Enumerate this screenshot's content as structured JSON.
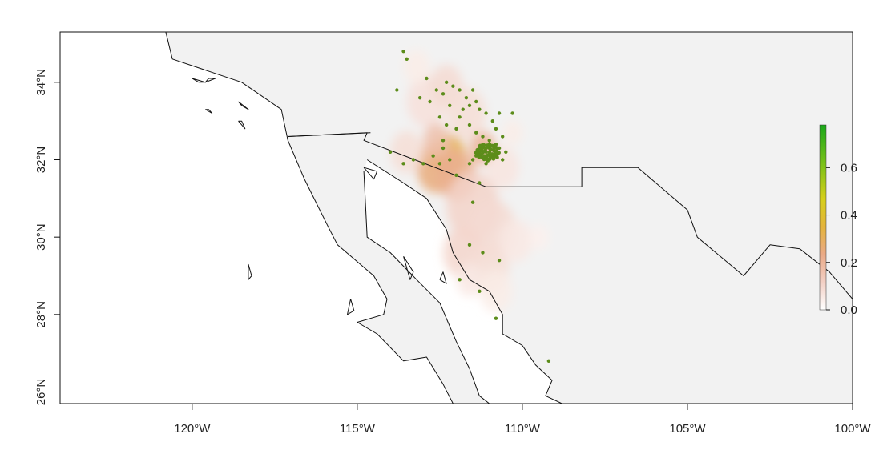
{
  "chart_data": {
    "type": "heatmap",
    "title": "",
    "xlabel": "",
    "ylabel": "",
    "xlim": [
      -124,
      -100
    ],
    "ylim": [
      25.7,
      35.3
    ],
    "x_ticks": [
      {
        "value": -120,
        "label": "120°W"
      },
      {
        "value": -115,
        "label": "115°W"
      },
      {
        "value": -110,
        "label": "110°W"
      },
      {
        "value": -105,
        "label": "105°W"
      },
      {
        "value": -100,
        "label": "100°W"
      }
    ],
    "y_ticks": [
      {
        "value": 26,
        "label": "26°N"
      },
      {
        "value": 28,
        "label": "28°N"
      },
      {
        "value": 30,
        "label": "30°N"
      },
      {
        "value": 32,
        "label": "32°N"
      },
      {
        "value": 34,
        "label": "34°N"
      }
    ],
    "legend": {
      "range": [
        0,
        0.78
      ],
      "ticks": [
        {
          "value": 0.0,
          "label": "0.0"
        },
        {
          "value": 0.2,
          "label": "0.2"
        },
        {
          "value": 0.4,
          "label": "0.4"
        },
        {
          "value": 0.6,
          "label": "0.6"
        }
      ],
      "colors": [
        "#ffffff",
        "#f2cfc4",
        "#eaaa87",
        "#e4b43c",
        "#d6cf1a",
        "#7fc218",
        "#1aa81a"
      ]
    },
    "background_color": "#f2f2f2",
    "land_color": "#ffffff",
    "point_color": "#5c8c1a",
    "suitability_cells": [
      {
        "lon": -112.2,
        "lat": 32.1,
        "v": 0.35,
        "r": 0.5
      },
      {
        "lon": -112.6,
        "lat": 31.8,
        "v": 0.28,
        "r": 0.6
      },
      {
        "lon": -112.0,
        "lat": 31.6,
        "v": 0.24,
        "r": 0.6
      },
      {
        "lon": -111.2,
        "lat": 32.3,
        "v": 0.22,
        "r": 0.4
      },
      {
        "lon": -112.9,
        "lat": 33.5,
        "v": 0.08,
        "r": 0.6
      },
      {
        "lon": -112.3,
        "lat": 33.9,
        "v": 0.1,
        "r": 0.5
      },
      {
        "lon": -111.7,
        "lat": 33.2,
        "v": 0.09,
        "r": 0.6
      },
      {
        "lon": -113.2,
        "lat": 34.4,
        "v": 0.05,
        "r": 0.4
      },
      {
        "lon": -111.5,
        "lat": 30.8,
        "v": 0.12,
        "r": 0.8
      },
      {
        "lon": -110.9,
        "lat": 30.2,
        "v": 0.1,
        "r": 0.7
      },
      {
        "lon": -111.8,
        "lat": 29.6,
        "v": 0.11,
        "r": 0.6
      },
      {
        "lon": -111.0,
        "lat": 29.2,
        "v": 0.09,
        "r": 0.6
      },
      {
        "lon": -110.2,
        "lat": 29.9,
        "v": 0.06,
        "r": 0.5
      },
      {
        "lon": -109.5,
        "lat": 30.0,
        "v": 0.04,
        "r": 0.3
      },
      {
        "lon": -110.8,
        "lat": 28.6,
        "v": 0.05,
        "r": 0.5
      },
      {
        "lon": -111.6,
        "lat": 28.9,
        "v": 0.06,
        "r": 0.4
      },
      {
        "lon": -110.6,
        "lat": 31.8,
        "v": 0.07,
        "r": 0.5
      },
      {
        "lon": -113.5,
        "lat": 32.2,
        "v": 0.09,
        "r": 0.5
      },
      {
        "lon": -112.6,
        "lat": 32.5,
        "v": 0.18,
        "r": 0.4
      },
      {
        "lon": -110.3,
        "lat": 32.7,
        "v": 0.05,
        "r": 0.3
      }
    ],
    "occurrences": [
      [
        -113.6,
        34.8
      ],
      [
        -113.5,
        34.6
      ],
      [
        -112.9,
        34.1
      ],
      [
        -113.8,
        33.8
      ],
      [
        -113.1,
        33.6
      ],
      [
        -112.8,
        33.5
      ],
      [
        -112.6,
        33.8
      ],
      [
        -112.4,
        33.7
      ],
      [
        -112.3,
        34.0
      ],
      [
        -112.1,
        33.9
      ],
      [
        -111.9,
        33.8
      ],
      [
        -111.7,
        33.6
      ],
      [
        -111.6,
        33.4
      ],
      [
        -111.5,
        33.8
      ],
      [
        -111.4,
        33.5
      ],
      [
        -111.3,
        33.3
      ],
      [
        -111.1,
        33.2
      ],
      [
        -110.9,
        33.0
      ],
      [
        -110.8,
        32.8
      ],
      [
        -110.6,
        32.6
      ],
      [
        -110.7,
        33.2
      ],
      [
        -110.3,
        33.2
      ],
      [
        -111.8,
        33.3
      ],
      [
        -111.9,
        33.1
      ],
      [
        -112.2,
        33.4
      ],
      [
        -112.5,
        33.1
      ],
      [
        -112.0,
        32.8
      ],
      [
        -111.6,
        32.9
      ],
      [
        -111.4,
        32.7
      ],
      [
        -111.2,
        32.6
      ],
      [
        -111.0,
        32.5
      ],
      [
        -110.8,
        32.4
      ],
      [
        -111.3,
        32.3
      ],
      [
        -111.1,
        32.2
      ],
      [
        -110.9,
        32.1
      ],
      [
        -111.0,
        32.3
      ],
      [
        -110.8,
        32.2
      ],
      [
        -111.2,
        32.4
      ],
      [
        -110.7,
        32.3
      ],
      [
        -111.4,
        32.1
      ],
      [
        -111.5,
        32.0
      ],
      [
        -111.6,
        31.9
      ],
      [
        -111.1,
        31.9
      ],
      [
        -110.6,
        32.0
      ],
      [
        -110.5,
        32.2
      ],
      [
        -112.4,
        32.3
      ],
      [
        -112.2,
        32.0
      ],
      [
        -112.5,
        31.9
      ],
      [
        -112.7,
        32.1
      ],
      [
        -113.0,
        31.9
      ],
      [
        -113.3,
        32.0
      ],
      [
        -114.0,
        32.2
      ],
      [
        -113.6,
        31.9
      ],
      [
        -112.0,
        31.6
      ],
      [
        -111.3,
        31.4
      ],
      [
        -111.5,
        30.9
      ],
      [
        -111.6,
        29.8
      ],
      [
        -111.2,
        29.6
      ],
      [
        -110.7,
        29.4
      ],
      [
        -111.9,
        28.9
      ],
      [
        -111.3,
        28.6
      ],
      [
        -109.2,
        26.8
      ],
      [
        -110.8,
        27.9
      ],
      [
        -112.3,
        32.9
      ],
      [
        -112.4,
        32.5
      ]
    ],
    "coastline": [
      [
        [
          -120.8,
          35.3
        ],
        [
          -120.6,
          34.6
        ],
        [
          -118.5,
          34.0
        ],
        [
          -117.3,
          33.3
        ],
        [
          -117.1,
          32.5
        ],
        [
          -116.6,
          31.5
        ],
        [
          -115.9,
          30.3
        ],
        [
          -115.6,
          29.8
        ],
        [
          -114.5,
          29.0
        ],
        [
          -114.1,
          28.4
        ],
        [
          -114.2,
          28.0
        ],
        [
          -115.0,
          27.8
        ],
        [
          -114.4,
          27.5
        ],
        [
          -113.6,
          26.8
        ],
        [
          -112.9,
          26.9
        ],
        [
          -112.4,
          26.2
        ],
        [
          -112.1,
          25.7
        ]
      ],
      [
        [
          -114.7,
          32.0
        ],
        [
          -113.6,
          31.4
        ],
        [
          -112.9,
          31.0
        ],
        [
          -112.3,
          30.2
        ],
        [
          -112.1,
          29.6
        ],
        [
          -111.6,
          28.9
        ],
        [
          -111.0,
          28.6
        ],
        [
          -110.6,
          28.0
        ],
        [
          -110.6,
          27.5
        ],
        [
          -110.0,
          27.2
        ],
        [
          -109.6,
          26.7
        ],
        [
          -109.1,
          26.3
        ],
        [
          -109.3,
          25.9
        ],
        [
          -108.8,
          25.7
        ]
      ],
      [
        [
          -114.8,
          31.7
        ],
        [
          -114.7,
          30.0
        ],
        [
          -114.0,
          29.6
        ],
        [
          -113.2,
          28.9
        ],
        [
          -112.5,
          28.3
        ],
        [
          -112.3,
          27.9
        ],
        [
          -112.0,
          27.3
        ],
        [
          -111.6,
          26.6
        ],
        [
          -111.3,
          25.9
        ],
        [
          -111.0,
          25.7
        ]
      ],
      [
        [
          -114.8,
          31.8
        ],
        [
          -114.4,
          31.7
        ],
        [
          -114.5,
          31.5
        ],
        [
          -114.8,
          31.8
        ]
      ],
      [
        [
          -113.6,
          29.5
        ],
        [
          -113.3,
          29.1
        ],
        [
          -113.4,
          28.9
        ],
        [
          -113.6,
          29.5
        ]
      ],
      [
        [
          -112.5,
          28.9
        ],
        [
          -112.3,
          28.8
        ],
        [
          -112.4,
          29.1
        ],
        [
          -112.5,
          28.9
        ]
      ],
      [
        [
          -115.2,
          28.4
        ],
        [
          -115.1,
          28.1
        ],
        [
          -115.3,
          28.0
        ],
        [
          -115.2,
          28.4
        ]
      ],
      [
        [
          -118.3,
          29.3
        ],
        [
          -118.2,
          29.0
        ],
        [
          -118.3,
          28.9
        ],
        [
          -118.3,
          29.3
        ]
      ],
      [
        [
          -120.0,
          34.1
        ],
        [
          -119.6,
          34.0
        ],
        [
          -119.8,
          34.0
        ],
        [
          -120.0,
          34.1
        ]
      ],
      [
        [
          -119.5,
          34.1
        ],
        [
          -119.3,
          34.1
        ],
        [
          -119.6,
          34.0
        ],
        [
          -119.5,
          34.1
        ]
      ],
      [
        [
          -118.6,
          33.5
        ],
        [
          -118.3,
          33.3
        ],
        [
          -118.5,
          33.4
        ],
        [
          -118.6,
          33.5
        ]
      ],
      [
        [
          -118.6,
          33.0
        ],
        [
          -118.4,
          32.8
        ],
        [
          -118.5,
          33.0
        ],
        [
          -118.6,
          33.0
        ]
      ],
      [
        [
          -119.6,
          33.3
        ],
        [
          -119.4,
          33.2
        ],
        [
          -119.5,
          33.3
        ],
        [
          -119.6,
          33.3
        ]
      ]
    ],
    "border_us_mexico": [
      [
        -117.1,
        32.6
      ],
      [
        -114.7,
        32.7
      ],
      [
        -114.8,
        32.5
      ],
      [
        -111.1,
        31.3
      ],
      [
        -108.2,
        31.3
      ],
      [
        -108.2,
        31.8
      ],
      [
        -106.5,
        31.8
      ],
      [
        -105.0,
        30.7
      ],
      [
        -104.7,
        30.0
      ],
      [
        -103.3,
        29.0
      ],
      [
        -102.5,
        29.8
      ],
      [
        -101.6,
        29.7
      ],
      [
        -100.7,
        29.1
      ],
      [
        -100.0,
        28.4
      ]
    ]
  }
}
